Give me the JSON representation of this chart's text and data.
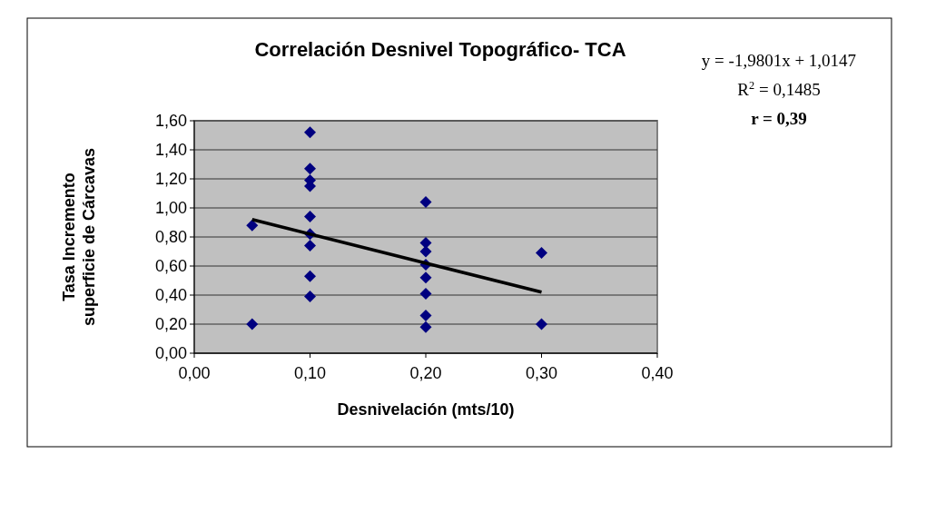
{
  "chart_data": {
    "type": "scatter",
    "title": "Correlación Desnivel Topográfico- TCA",
    "xlabel": "Desnivelación (mts/10)",
    "ylabel": "Tasa Incremento superficie de Cárcavas",
    "annotations": [
      "y = -1,9801x + 1,0147",
      "R$^{2}$ = 0,1485",
      "r = 0,39"
    ],
    "xlim": [
      0,
      0.4
    ],
    "xticks": [
      {
        "value": 0,
        "label": "0,00"
      },
      {
        "value": 0.1,
        "label": "0,10"
      },
      {
        "value": 0.2,
        "label": "0,20"
      },
      {
        "value": 0.3,
        "label": "0,30"
      },
      {
        "value": 0.4,
        "label": "0,40"
      }
    ],
    "ylim": [
      0,
      1.6
    ],
    "yticks": [
      {
        "value": 0,
        "label": "0,00"
      },
      {
        "value": 0.2,
        "label": "0,20"
      },
      {
        "value": 0.4,
        "label": "0,40"
      },
      {
        "value": 0.6,
        "label": "0,60"
      },
      {
        "value": 0.8,
        "label": "0,80"
      },
      {
        "value": 1,
        "label": "1,00"
      },
      {
        "value": 1.2,
        "label": "1,20"
      },
      {
        "value": 1.4,
        "label": "1,40"
      },
      {
        "value": 1.6,
        "label": "1,60"
      }
    ],
    "grid": "y",
    "marker": "diamond",
    "series": [
      {
        "color": "#000080",
        "x": [
          0.05,
          0.05,
          0.1,
          0.1,
          0.1,
          0.1,
          0.1,
          0.1,
          0.1,
          0.1,
          0.1,
          0.2,
          0.2,
          0.2,
          0.2,
          0.2,
          0.2,
          0.2,
          0.2,
          0.3,
          0.3
        ],
        "values": [
          0.88,
          0.2,
          1.52,
          1.27,
          1.19,
          1.15,
          0.94,
          0.82,
          0.74,
          0.53,
          0.39,
          1.04,
          0.76,
          0.7,
          0.61,
          0.52,
          0.41,
          0.26,
          0.18,
          0.69,
          0.2
        ]
      },
      {
        "type": "line",
        "color": "#000000",
        "x": [
          0.05,
          0.3
        ],
        "values": [
          0.92,
          0.42
        ],
        "marker": "none",
        "line_style": "solid"
      }
    ]
  }
}
